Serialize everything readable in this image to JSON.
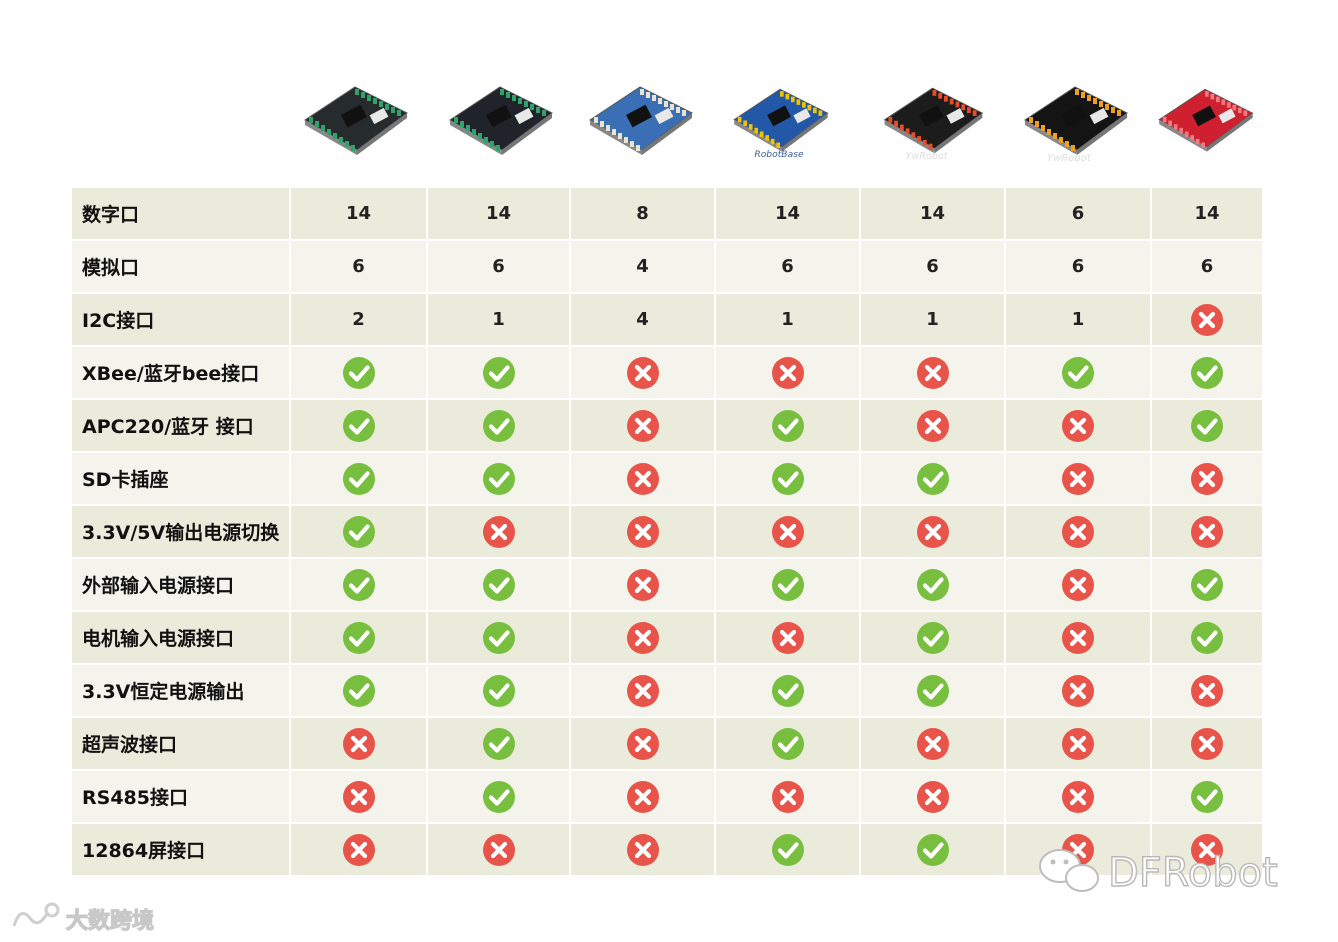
{
  "boards": [
    {
      "name": "board-1",
      "pcb": "#262b2e",
      "accent": "#2fa36b"
    },
    {
      "name": "board-2",
      "pcb": "#20242a",
      "accent": "#2fa36b"
    },
    {
      "name": "board-3",
      "pcb": "#3a6fb5",
      "accent": "#e9e3cf"
    },
    {
      "name": "board-4",
      "pcb": "#2358a8",
      "accent": "#f2c200",
      "logo": "RobotBase"
    },
    {
      "name": "board-5",
      "pcb": "#1c1c1c",
      "accent": "#e84d2a",
      "logo": "YwRobot"
    },
    {
      "name": "board-6",
      "pcb": "#141414",
      "accent": "#f0a020",
      "logo": "YwRobot"
    },
    {
      "name": "board-7",
      "pcb": "#cf2030",
      "accent": "#f07a80"
    }
  ],
  "rows": [
    {
      "label": "数字口",
      "cells": [
        "14",
        "14",
        "8",
        "14",
        "14",
        "6",
        "14"
      ]
    },
    {
      "label": "模拟口",
      "cells": [
        "6",
        "6",
        "4",
        "6",
        "6",
        "6",
        "6"
      ]
    },
    {
      "label": "I2C接口",
      "cells": [
        "2",
        "1",
        "4",
        "1",
        "1",
        "1",
        "no"
      ]
    },
    {
      "label": "XBee/蓝牙bee接口",
      "cells": [
        "yes",
        "yes",
        "no",
        "no",
        "no",
        "yes",
        "yes"
      ]
    },
    {
      "label": "APC220/蓝牙 接口",
      "cells": [
        "yes",
        "yes",
        "no",
        "yes",
        "no",
        "no",
        "yes"
      ]
    },
    {
      "label": "SD卡插座",
      "cells": [
        "yes",
        "yes",
        "no",
        "yes",
        "yes",
        "no",
        "no"
      ]
    },
    {
      "label": "3.3V/5V输出电源切换",
      "cells": [
        "yes",
        "no",
        "no",
        "no",
        "no",
        "no",
        "no"
      ]
    },
    {
      "label": "外部输入电源接口",
      "cells": [
        "yes",
        "yes",
        "no",
        "yes",
        "yes",
        "no",
        "yes"
      ]
    },
    {
      "label": "电机输入电源接口",
      "cells": [
        "yes",
        "yes",
        "no",
        "no",
        "yes",
        "no",
        "yes"
      ]
    },
    {
      "label": "3.3V恒定电源输出",
      "cells": [
        "yes",
        "yes",
        "no",
        "yes",
        "yes",
        "no",
        "no"
      ]
    },
    {
      "label": "超声波接口",
      "cells": [
        "no",
        "yes",
        "no",
        "yes",
        "no",
        "no",
        "no"
      ]
    },
    {
      "label": "RS485接口",
      "cells": [
        "no",
        "yes",
        "no",
        "no",
        "no",
        "no",
        "yes"
      ]
    },
    {
      "label": "12864屏接口",
      "cells": [
        "no",
        "no",
        "no",
        "yes",
        "yes",
        "no",
        "no"
      ]
    }
  ],
  "colors": {
    "yes": "#79bf3f",
    "no": "#e9544a"
  },
  "watermark": {
    "left": "大数跨境",
    "right": "DFRobot"
  }
}
